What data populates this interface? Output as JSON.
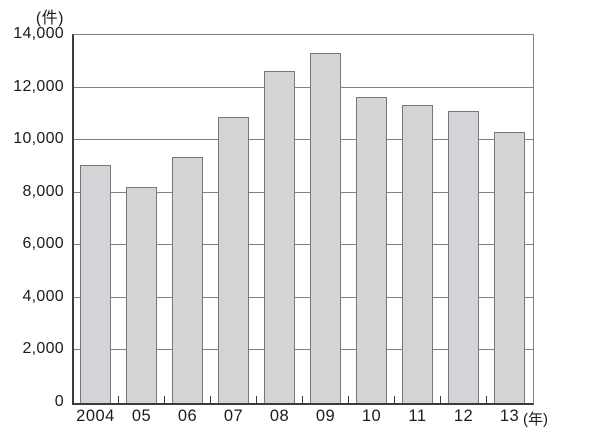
{
  "chart_data": {
    "type": "bar",
    "title": "",
    "unit_label": "(件)",
    "year_suffix_label": "(年)",
    "categories": [
      "2004",
      "05",
      "06",
      "07",
      "08",
      "09",
      "10",
      "11",
      "12",
      "13"
    ],
    "values": [
      9050,
      8200,
      9350,
      10900,
      12650,
      13300,
      11650,
      11350,
      11100,
      10300
    ],
    "ylim": [
      0,
      14000
    ],
    "ytick_interval": 2000,
    "ytick_labels": [
      "0",
      "2,000",
      "4,000",
      "6,000",
      "8,000",
      "10,000",
      "12,000",
      "14,000"
    ],
    "grid": true,
    "legend": "none",
    "bar_color": "#d3d4d6",
    "bar_border_color": "#76777b",
    "grid_color": "#828282",
    "axis_color": "#3b3b3b",
    "text_color": "#1c1c1c"
  }
}
